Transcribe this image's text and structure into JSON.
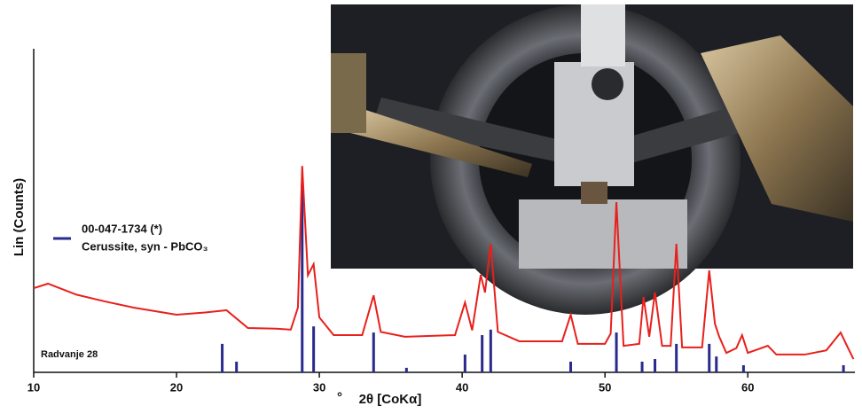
{
  "chart_data": {
    "type": "line",
    "ylabel": "Lin (Counts)",
    "xlabel_prefix": "°",
    "xlabel": "2θ [CoKα]",
    "sample_label": "Radvanje 28",
    "xlim": [
      10,
      67.5
    ],
    "xticks": [
      10,
      20,
      30,
      40,
      50,
      60
    ],
    "ylim": [
      0,
      1000
    ],
    "series": [
      {
        "type": "line",
        "color": "#e8201c",
        "x": [
          10,
          11,
          13,
          15,
          17,
          20,
          22,
          23.5,
          25,
          27,
          28,
          28.5,
          28.8,
          29.2,
          29.6,
          30,
          31,
          33,
          33.8,
          34.3,
          36,
          39.5,
          40.2,
          40.7,
          41.3,
          41.6,
          42.0,
          42.5,
          44,
          47,
          47.6,
          48.1,
          50,
          50.4,
          50.8,
          51.3,
          52.4,
          52.7,
          53.1,
          53.5,
          54,
          54.6,
          55.0,
          55.4,
          56.8,
          57.3,
          57.7,
          58,
          58.5,
          59.2,
          59.6,
          60,
          61.4,
          62,
          64,
          65.5,
          66.5,
          67,
          67.4
        ],
        "values": [
          260,
          274,
          240,
          219,
          200,
          178,
          185,
          192,
          137,
          135,
          132,
          200,
          638,
          300,
          334,
          170,
          115,
          115,
          238,
          125,
          110,
          115,
          216,
          130,
          301,
          247,
          397,
          125,
          96,
          96,
          178,
          88,
          88,
          120,
          526,
          82,
          88,
          233,
          110,
          247,
          82,
          82,
          397,
          77,
          77,
          315,
          150,
          110,
          60,
          75,
          115,
          60,
          82,
          55,
          55,
          68,
          123,
          77,
          41
        ]
      },
      {
        "type": "stick",
        "color": "#2a2a8c",
        "name": "00-047-1734 (*)",
        "description": "Cerussite, syn - PbCO₃",
        "x": [
          23.2,
          24.2,
          28.8,
          29.6,
          33.8,
          36.1,
          40.2,
          41.4,
          42.0,
          47.6,
          50.8,
          52.6,
          53.5,
          55.0,
          57.3,
          57.8,
          59.7,
          66.7
        ],
        "values": [
          88,
          33,
          580,
          142,
          123,
          14,
          55,
          115,
          132,
          33,
          123,
          33,
          41,
          88,
          88,
          49,
          22,
          22
        ]
      }
    ]
  }
}
